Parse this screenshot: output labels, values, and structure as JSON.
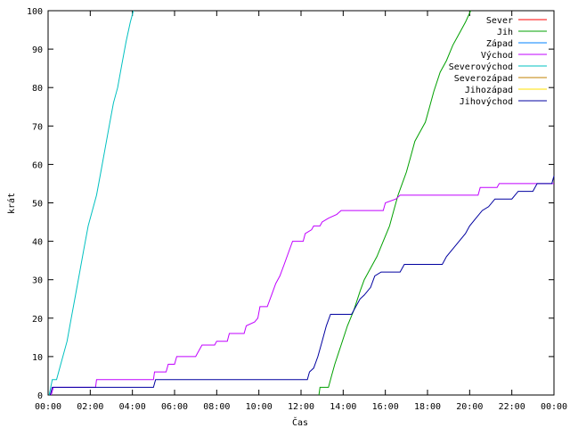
{
  "chart_data": {
    "type": "line",
    "title": "",
    "xlabel": "Čas",
    "ylabel": "krát",
    "xlim": [
      0,
      24
    ],
    "ylim": [
      0,
      100
    ],
    "grid": false,
    "legend_position": "top-right",
    "x_ticks": [
      {
        "value": 0,
        "label": "00:00"
      },
      {
        "value": 2,
        "label": "02:00"
      },
      {
        "value": 4,
        "label": "04:00"
      },
      {
        "value": 6,
        "label": "06:00"
      },
      {
        "value": 8,
        "label": "08:00"
      },
      {
        "value": 10,
        "label": "10:00"
      },
      {
        "value": 12,
        "label": "12:00"
      },
      {
        "value": 14,
        "label": "14:00"
      },
      {
        "value": 16,
        "label": "16:00"
      },
      {
        "value": 18,
        "label": "18:00"
      },
      {
        "value": 20,
        "label": "20:00"
      },
      {
        "value": 22,
        "label": "22:00"
      },
      {
        "value": 24,
        "label": "00:00"
      }
    ],
    "y_ticks": [
      0,
      10,
      20,
      30,
      40,
      50,
      60,
      70,
      80,
      90,
      100
    ],
    "series": [
      {
        "name": "Sever",
        "color": "#ff0000",
        "points": []
      },
      {
        "name": "Jih",
        "color": "#00a000",
        "points": [
          [
            12.85,
            0
          ],
          [
            12.9,
            2
          ],
          [
            13.3,
            2
          ],
          [
            13.45,
            5
          ],
          [
            13.6,
            8
          ],
          [
            13.9,
            13
          ],
          [
            14.2,
            18
          ],
          [
            14.5,
            22
          ],
          [
            14.8,
            27
          ],
          [
            15.0,
            30
          ],
          [
            15.3,
            33
          ],
          [
            15.6,
            36
          ],
          [
            15.9,
            40
          ],
          [
            16.2,
            44
          ],
          [
            16.4,
            48
          ],
          [
            16.6,
            52
          ],
          [
            16.8,
            55
          ],
          [
            17.0,
            58
          ],
          [
            17.2,
            62
          ],
          [
            17.4,
            66
          ],
          [
            17.6,
            68
          ],
          [
            17.9,
            71
          ],
          [
            18.1,
            75
          ],
          [
            18.3,
            79
          ],
          [
            18.6,
            84
          ],
          [
            18.9,
            87
          ],
          [
            19.2,
            91
          ],
          [
            19.5,
            94
          ],
          [
            19.8,
            97
          ],
          [
            20.05,
            100
          ]
        ]
      },
      {
        "name": "Západ",
        "color": "#0080ff",
        "points": []
      },
      {
        "name": "Východ",
        "color": "#c000ff",
        "points": [
          [
            0.15,
            0
          ],
          [
            0.25,
            2
          ],
          [
            2.25,
            2
          ],
          [
            2.3,
            4
          ],
          [
            5.0,
            4
          ],
          [
            5.05,
            6
          ],
          [
            5.6,
            6
          ],
          [
            5.7,
            8
          ],
          [
            6.0,
            8
          ],
          [
            6.1,
            10
          ],
          [
            7.0,
            10
          ],
          [
            7.1,
            11
          ],
          [
            7.3,
            13
          ],
          [
            7.9,
            13
          ],
          [
            8.0,
            14
          ],
          [
            8.5,
            14
          ],
          [
            8.6,
            16
          ],
          [
            9.3,
            16
          ],
          [
            9.4,
            18
          ],
          [
            9.8,
            19
          ],
          [
            9.95,
            20
          ],
          [
            10.05,
            23
          ],
          [
            10.4,
            23
          ],
          [
            10.6,
            26
          ],
          [
            10.8,
            29
          ],
          [
            11.0,
            31
          ],
          [
            11.2,
            34
          ],
          [
            11.4,
            37
          ],
          [
            11.6,
            40
          ],
          [
            12.1,
            40
          ],
          [
            12.2,
            42
          ],
          [
            12.5,
            43
          ],
          [
            12.6,
            44
          ],
          [
            12.9,
            44
          ],
          [
            13.0,
            45
          ],
          [
            13.3,
            46
          ],
          [
            13.7,
            47
          ],
          [
            13.9,
            48
          ],
          [
            15.9,
            48
          ],
          [
            16.0,
            50
          ],
          [
            16.5,
            51
          ],
          [
            16.7,
            52
          ],
          [
            20.4,
            52
          ],
          [
            20.5,
            54
          ],
          [
            21.3,
            54
          ],
          [
            21.4,
            55
          ],
          [
            24.0,
            55
          ]
        ]
      },
      {
        "name": "Severovýchod",
        "color": "#00c0c0",
        "points": [
          [
            0.05,
            0
          ],
          [
            0.2,
            4
          ],
          [
            0.4,
            4
          ],
          [
            0.6,
            8
          ],
          [
            0.9,
            14
          ],
          [
            1.1,
            20
          ],
          [
            1.3,
            26
          ],
          [
            1.5,
            32
          ],
          [
            1.7,
            38
          ],
          [
            1.9,
            44
          ],
          [
            2.1,
            48
          ],
          [
            2.3,
            52
          ],
          [
            2.5,
            58
          ],
          [
            2.7,
            64
          ],
          [
            2.9,
            70
          ],
          [
            3.1,
            76
          ],
          [
            3.3,
            80
          ],
          [
            3.5,
            86
          ],
          [
            3.7,
            92
          ],
          [
            3.9,
            97
          ],
          [
            4.05,
            100
          ]
        ]
      },
      {
        "name": "Severozápad",
        "color": "#c08000",
        "points": []
      },
      {
        "name": "Jihozápad",
        "color": "#ffe000",
        "points": []
      },
      {
        "name": "Jihovýchod",
        "color": "#0000a0",
        "points": [
          [
            0.1,
            0
          ],
          [
            0.2,
            2
          ],
          [
            5.0,
            2
          ],
          [
            5.1,
            4
          ],
          [
            12.3,
            4
          ],
          [
            12.4,
            6
          ],
          [
            12.6,
            7
          ],
          [
            12.8,
            10
          ],
          [
            13.0,
            14
          ],
          [
            13.2,
            18
          ],
          [
            13.4,
            21
          ],
          [
            14.4,
            21
          ],
          [
            14.6,
            23
          ],
          [
            14.8,
            25
          ],
          [
            15.0,
            26
          ],
          [
            15.3,
            28
          ],
          [
            15.5,
            31
          ],
          [
            15.8,
            32
          ],
          [
            16.7,
            32
          ],
          [
            16.9,
            34
          ],
          [
            18.7,
            34
          ],
          [
            18.9,
            36
          ],
          [
            19.2,
            38
          ],
          [
            19.5,
            40
          ],
          [
            19.8,
            42
          ],
          [
            20.0,
            44
          ],
          [
            20.3,
            46
          ],
          [
            20.6,
            48
          ],
          [
            20.9,
            49
          ],
          [
            21.2,
            51
          ],
          [
            22.0,
            51
          ],
          [
            22.3,
            53
          ],
          [
            23.0,
            53
          ],
          [
            23.2,
            55
          ],
          [
            23.9,
            55
          ],
          [
            24.0,
            57
          ]
        ]
      }
    ]
  }
}
